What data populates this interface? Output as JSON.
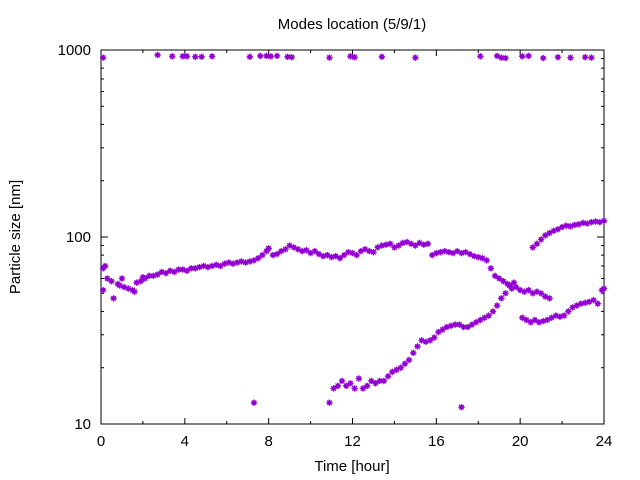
{
  "chart_data": {
    "type": "scatter",
    "title": "Modes location (5/9/1)",
    "xlabel": "Time [hour]",
    "ylabel": "Particle size [nm]",
    "xlim": [
      0,
      24
    ],
    "ylim": [
      10,
      1000
    ],
    "y_scale": "log",
    "grid": false,
    "marker_color": "#9400d3",
    "x_ticks": [
      0,
      4,
      8,
      12,
      16,
      20,
      24
    ],
    "x_tick_labels": [
      "0",
      "4",
      "8",
      "12",
      "16",
      "20",
      "24"
    ],
    "y_ticks": [
      10,
      100,
      1000
    ],
    "y_tick_labels": [
      "10",
      "100",
      "1000"
    ],
    "series": [
      {
        "points": [
          [
            0.1,
            52
          ],
          [
            0.1,
            68
          ],
          [
            0.2,
            70
          ],
          [
            0.3,
            60
          ],
          [
            0.5,
            58
          ],
          [
            0.6,
            47
          ],
          [
            0.8,
            56
          ],
          [
            0.9,
            55
          ],
          [
            1.0,
            60
          ],
          [
            1.1,
            54
          ],
          [
            1.3,
            53
          ],
          [
            1.5,
            52
          ],
          [
            1.6,
            51
          ],
          [
            1.7,
            57
          ],
          [
            1.9,
            58
          ],
          [
            2.0,
            61
          ],
          [
            2.1,
            60
          ],
          [
            2.3,
            62
          ],
          [
            2.5,
            62
          ],
          [
            2.7,
            63
          ],
          [
            2.9,
            65
          ],
          [
            3.1,
            64
          ],
          [
            3.3,
            66
          ],
          [
            3.5,
            65
          ],
          [
            3.7,
            67
          ],
          [
            3.9,
            67
          ],
          [
            4.1,
            66
          ],
          [
            4.3,
            68
          ],
          [
            4.5,
            68
          ],
          [
            4.7,
            69
          ],
          [
            4.9,
            70
          ],
          [
            5.1,
            69
          ],
          [
            5.3,
            70
          ],
          [
            5.5,
            71
          ],
          [
            5.7,
            70
          ],
          [
            5.9,
            72
          ],
          [
            6.1,
            73
          ],
          [
            6.3,
            72
          ],
          [
            6.5,
            73
          ],
          [
            6.7,
            74
          ],
          [
            6.9,
            73
          ],
          [
            7.1,
            74
          ],
          [
            7.3,
            75
          ],
          [
            7.5,
            77
          ],
          [
            7.7,
            80
          ],
          [
            7.9,
            84
          ],
          [
            8.0,
            87
          ],
          [
            8.2,
            80
          ],
          [
            8.4,
            81
          ],
          [
            8.6,
            84
          ],
          [
            8.8,
            86
          ],
          [
            9.0,
            90
          ],
          [
            9.2,
            88
          ],
          [
            9.4,
            86
          ],
          [
            9.6,
            84
          ],
          [
            9.8,
            85
          ],
          [
            10.0,
            82
          ],
          [
            10.2,
            84
          ],
          [
            10.4,
            81
          ],
          [
            10.6,
            79
          ],
          [
            10.8,
            80
          ],
          [
            11.0,
            78
          ],
          [
            11.2,
            79
          ],
          [
            11.4,
            77
          ],
          [
            11.6,
            80
          ],
          [
            11.8,
            83
          ],
          [
            12.0,
            82
          ],
          [
            12.2,
            80
          ],
          [
            12.4,
            84
          ],
          [
            12.6,
            86
          ],
          [
            12.8,
            84
          ],
          [
            13.0,
            83
          ],
          [
            13.2,
            88
          ],
          [
            13.4,
            90
          ],
          [
            13.6,
            91
          ],
          [
            13.8,
            92
          ],
          [
            14.0,
            88
          ],
          [
            14.2,
            90
          ],
          [
            14.4,
            93
          ],
          [
            14.6,
            94
          ],
          [
            14.8,
            92
          ],
          [
            15.0,
            90
          ],
          [
            15.2,
            93
          ],
          [
            15.4,
            91
          ],
          [
            15.6,
            92
          ],
          [
            15.8,
            80
          ],
          [
            16.0,
            82
          ],
          [
            16.2,
            83
          ],
          [
            16.4,
            84
          ],
          [
            16.6,
            83
          ],
          [
            16.8,
            82
          ],
          [
            17.0,
            84
          ],
          [
            17.2,
            82
          ],
          [
            17.4,
            83
          ],
          [
            17.6,
            81
          ],
          [
            17.8,
            79
          ],
          [
            18.0,
            78
          ],
          [
            18.2,
            77
          ],
          [
            18.4,
            75
          ],
          [
            18.6,
            68
          ],
          [
            18.8,
            62
          ],
          [
            19.0,
            60
          ],
          [
            19.2,
            58
          ],
          [
            19.4,
            56
          ],
          [
            19.6,
            53
          ],
          [
            19.8,
            54
          ],
          [
            20.0,
            52
          ],
          [
            20.2,
            51
          ],
          [
            20.4,
            52
          ],
          [
            20.6,
            50
          ],
          [
            20.8,
            51
          ],
          [
            21.0,
            50
          ],
          [
            21.2,
            48
          ],
          [
            21.4,
            47
          ]
        ]
      },
      {
        "points": [
          [
            10.9,
            13
          ],
          [
            11.1,
            15.5
          ],
          [
            11.3,
            16
          ],
          [
            11.5,
            17
          ],
          [
            11.7,
            16
          ],
          [
            11.9,
            16.5
          ],
          [
            12.1,
            15.5
          ],
          [
            12.3,
            17.5
          ],
          [
            12.5,
            15.5
          ],
          [
            12.7,
            16
          ],
          [
            12.9,
            17
          ],
          [
            13.1,
            16.5
          ],
          [
            13.3,
            17
          ],
          [
            13.5,
            17
          ],
          [
            13.7,
            18
          ],
          [
            13.9,
            19
          ],
          [
            14.1,
            19.5
          ],
          [
            14.3,
            20
          ],
          [
            14.5,
            21
          ],
          [
            14.7,
            22
          ],
          [
            14.9,
            24
          ],
          [
            15.1,
            26
          ],
          [
            15.3,
            28
          ],
          [
            15.5,
            27.5
          ],
          [
            15.7,
            28
          ],
          [
            15.9,
            29
          ],
          [
            16.1,
            31
          ],
          [
            16.3,
            32
          ],
          [
            16.5,
            33
          ],
          [
            16.7,
            33.5
          ],
          [
            16.9,
            34
          ],
          [
            17.1,
            34
          ],
          [
            17.3,
            33
          ],
          [
            17.5,
            33
          ],
          [
            17.7,
            34
          ],
          [
            17.9,
            35
          ],
          [
            18.1,
            36
          ],
          [
            18.3,
            37
          ],
          [
            18.5,
            38
          ],
          [
            18.7,
            40
          ],
          [
            18.9,
            43
          ],
          [
            19.1,
            47
          ],
          [
            19.3,
            50
          ],
          [
            19.5,
            55
          ],
          [
            19.7,
            57
          ],
          [
            20.1,
            37
          ],
          [
            20.3,
            36
          ],
          [
            20.5,
            35
          ],
          [
            20.7,
            36
          ],
          [
            20.9,
            35
          ],
          [
            21.1,
            35.5
          ],
          [
            21.3,
            36
          ],
          [
            21.5,
            37
          ],
          [
            21.7,
            38
          ],
          [
            21.9,
            37.5
          ],
          [
            22.1,
            38
          ],
          [
            22.3,
            40
          ],
          [
            22.5,
            42
          ],
          [
            22.7,
            43
          ],
          [
            22.9,
            44
          ],
          [
            23.1,
            44.5
          ],
          [
            23.3,
            45
          ],
          [
            23.5,
            46
          ],
          [
            23.7,
            44
          ],
          [
            23.9,
            52
          ],
          [
            24.0,
            53
          ]
        ]
      },
      {
        "points": [
          [
            20.6,
            88
          ],
          [
            20.8,
            92
          ],
          [
            21.0,
            97
          ],
          [
            21.2,
            102
          ],
          [
            21.4,
            105
          ],
          [
            21.6,
            108
          ],
          [
            21.8,
            110
          ],
          [
            22.0,
            113
          ],
          [
            22.2,
            115
          ],
          [
            22.4,
            114
          ],
          [
            22.6,
            116
          ],
          [
            22.8,
            117
          ],
          [
            23.0,
            119
          ],
          [
            23.2,
            118
          ],
          [
            23.4,
            120
          ],
          [
            23.6,
            121
          ],
          [
            23.8,
            120
          ],
          [
            24.0,
            122
          ]
        ]
      },
      {
        "points": [
          [
            0.1,
            910
          ],
          [
            2.7,
            940
          ],
          [
            3.4,
            925
          ],
          [
            3.9,
            925
          ],
          [
            4.1,
            925
          ],
          [
            4.5,
            920
          ],
          [
            4.8,
            920
          ],
          [
            5.3,
            925
          ],
          [
            7.1,
            920
          ],
          [
            7.6,
            930
          ],
          [
            7.9,
            930
          ],
          [
            8.1,
            925
          ],
          [
            8.4,
            930
          ],
          [
            8.9,
            920
          ],
          [
            9.1,
            915
          ],
          [
            10.9,
            910
          ],
          [
            11.9,
            925
          ],
          [
            12.1,
            915
          ],
          [
            13.4,
            920
          ],
          [
            15.0,
            910
          ],
          [
            18.1,
            925
          ],
          [
            18.9,
            930
          ],
          [
            19.1,
            910
          ],
          [
            19.3,
            905
          ],
          [
            20.1,
            925
          ],
          [
            20.4,
            930
          ],
          [
            21.1,
            905
          ],
          [
            21.8,
            915
          ],
          [
            22.4,
            910
          ],
          [
            23.1,
            915
          ],
          [
            23.4,
            910
          ]
        ]
      },
      {
        "points": [
          [
            7.3,
            13
          ],
          [
            17.2,
            12.3
          ]
        ]
      }
    ]
  }
}
